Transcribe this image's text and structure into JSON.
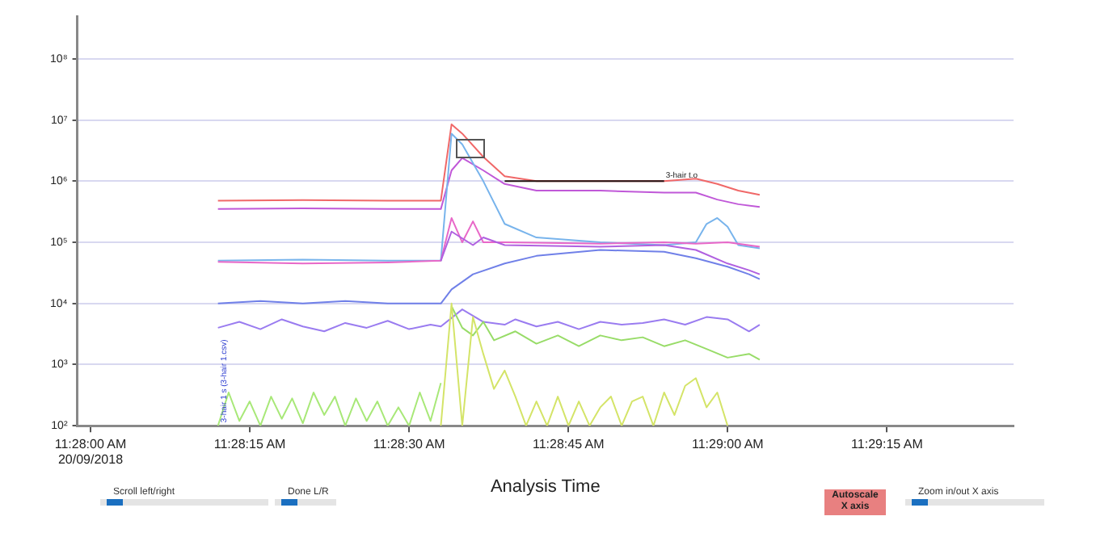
{
  "chart_data": {
    "type": "line",
    "xlabel": "Analysis Time",
    "log": "y",
    "grid": "y",
    "legend": false,
    "marker": "none",
    "line_style": "solid",
    "xlim": [
      11.46632,
      11.49081
    ],
    "ylim": [
      100,
      500000000
    ],
    "xticks": [
      {
        "value": 11.466667,
        "label": "11:28:00 AM\n20/09/2018"
      },
      {
        "value": 11.470833,
        "label": "11:28:15 AM"
      },
      {
        "value": 11.475,
        "label": "11:28:30 AM"
      },
      {
        "value": 11.479167,
        "label": "11:28:45 AM"
      },
      {
        "value": 11.483333,
        "label": "11:29:00 AM"
      },
      {
        "value": 11.4875,
        "label": "11:29:15 AM"
      }
    ],
    "yticks": [
      {
        "value": 100,
        "label": "10²"
      },
      {
        "value": 1000,
        "label": "10³"
      },
      {
        "value": 10000,
        "label": "10⁴"
      },
      {
        "value": 100000,
        "label": "10⁵"
      },
      {
        "value": 1000000,
        "label": "10⁶"
      },
      {
        "value": 10000000,
        "label": "10⁷"
      },
      {
        "value": 100000000,
        "label": "10⁸"
      }
    ],
    "series": [
      {
        "color": "#f06868",
        "x": [
          11.47,
          11.47222,
          11.47444,
          11.47583,
          11.47611,
          11.47639,
          11.47694,
          11.4775,
          11.47833,
          11.48,
          11.48167,
          11.4825,
          11.48306,
          11.48361,
          11.48417
        ],
        "values": [
          480000,
          490000,
          480000,
          480000,
          8500000,
          6000000,
          2500000,
          1200000,
          1000000,
          1000000,
          1000000,
          1100000,
          900000,
          700000,
          600000
        ]
      },
      {
        "color": "#c058d8",
        "x": [
          11.47,
          11.47222,
          11.47444,
          11.47583,
          11.47611,
          11.47639,
          11.47694,
          11.4775,
          11.47833,
          11.48,
          11.48167,
          11.4825,
          11.48306,
          11.48361,
          11.48417
        ],
        "values": [
          350000,
          360000,
          350000,
          350000,
          1500000,
          2400000,
          1500000,
          900000,
          700000,
          700000,
          650000,
          650000,
          500000,
          420000,
          380000
        ]
      },
      {
        "color": "#78b4ec",
        "x": [
          11.47,
          11.47222,
          11.47444,
          11.47583,
          11.47611,
          11.47639,
          11.47694,
          11.4775,
          11.47833,
          11.48,
          11.48167,
          11.4825,
          11.48278,
          11.48306,
          11.48333,
          11.48361,
          11.48417
        ],
        "values": [
          50000,
          52000,
          50000,
          50000,
          6000000,
          4000000,
          1000000,
          200000,
          120000,
          100000,
          90000,
          100000,
          200000,
          250000,
          180000,
          90000,
          80000
        ]
      },
      {
        "color": "#e868c8",
        "x": [
          11.47,
          11.47222,
          11.47444,
          11.47583,
          11.47611,
          11.47639,
          11.47667,
          11.47694,
          11.4775,
          11.48,
          11.48167,
          11.4825,
          11.48333,
          11.48417
        ],
        "values": [
          48000,
          45000,
          47000,
          50000,
          250000,
          100000,
          220000,
          100000,
          100000,
          95000,
          100000,
          95000,
          100000,
          85000
        ]
      },
      {
        "color": "#b060e0",
        "x": [
          11.47583,
          11.47611,
          11.47667,
          11.47694,
          11.4775,
          11.48,
          11.48167,
          11.4825,
          11.48333,
          11.48389,
          11.48417
        ],
        "values": [
          50000,
          150000,
          90000,
          120000,
          90000,
          85000,
          90000,
          75000,
          45000,
          35000,
          30000
        ]
      },
      {
        "color": "#7080e8",
        "x": [
          11.47,
          11.47111,
          11.47222,
          11.47333,
          11.47444,
          11.47583,
          11.47611,
          11.47667,
          11.4775,
          11.47833,
          11.48,
          11.48167,
          11.4825,
          11.48333,
          11.48389,
          11.48417
        ],
        "values": [
          10000,
          11000,
          10000,
          11000,
          10000,
          10000,
          17000,
          30000,
          45000,
          60000,
          75000,
          70000,
          55000,
          40000,
          30000,
          25000
        ]
      },
      {
        "color": "#9a7cf0",
        "x": [
          11.47,
          11.47056,
          11.47111,
          11.47167,
          11.47222,
          11.47278,
          11.47333,
          11.47389,
          11.47444,
          11.475,
          11.47556,
          11.47583,
          11.47639,
          11.47694,
          11.4775,
          11.47778,
          11.47833,
          11.47889,
          11.47944,
          11.48,
          11.48056,
          11.48111,
          11.48167,
          11.48222,
          11.48278,
          11.48333,
          11.48389,
          11.48417
        ],
        "values": [
          4000,
          5000,
          3800,
          5500,
          4200,
          3500,
          4800,
          4000,
          5200,
          3800,
          4500,
          4200,
          8000,
          5000,
          4500,
          5500,
          4200,
          5000,
          3800,
          5000,
          4500,
          4800,
          5500,
          4500,
          6000,
          5500,
          3500,
          4500
        ]
      },
      {
        "color": "#98dc68",
        "x": [
          11.47611,
          11.47639,
          11.47667,
          11.47694,
          11.47722,
          11.47778,
          11.47833,
          11.47889,
          11.47944,
          11.48,
          11.48056,
          11.48111,
          11.48167,
          11.48222,
          11.48278,
          11.48333,
          11.48389,
          11.48417
        ],
        "values": [
          9000,
          4000,
          3000,
          5000,
          2500,
          3500,
          2200,
          3000,
          2000,
          3000,
          2500,
          2800,
          2000,
          2500,
          1800,
          1300,
          1500,
          1200
        ]
      },
      {
        "color": "#a8e878",
        "x": [
          11.47,
          11.47028,
          11.47056,
          11.47083,
          11.47111,
          11.47139,
          11.47167,
          11.47194,
          11.47222,
          11.4725,
          11.47278,
          11.47306,
          11.47333,
          11.47361,
          11.47389,
          11.47417,
          11.47444,
          11.47472,
          11.475,
          11.47528,
          11.47556,
          11.47583
        ],
        "values": [
          100,
          350,
          120,
          250,
          100,
          300,
          130,
          280,
          110,
          350,
          150,
          300,
          100,
          280,
          120,
          250,
          100,
          200,
          100,
          350,
          120,
          500
        ]
      },
      {
        "color": "#d4e468",
        "x": [
          11.47583,
          11.47611,
          11.47639,
          11.47667,
          11.47694,
          11.47722,
          11.4775,
          11.47778,
          11.47806,
          11.47833,
          11.47861,
          11.47889,
          11.47917,
          11.47944,
          11.47972,
          11.48,
          11.48028,
          11.48056,
          11.48083,
          11.48111,
          11.48139,
          11.48167,
          11.48194,
          11.48222,
          11.4825,
          11.48278,
          11.48306,
          11.48333
        ],
        "values": [
          100,
          10000,
          100,
          6000,
          1500,
          400,
          800,
          300,
          100,
          250,
          100,
          300,
          100,
          250,
          100,
          200,
          300,
          100,
          250,
          300,
          100,
          350,
          150,
          450,
          600,
          200,
          350,
          100
        ]
      },
      {
        "color": "#201010",
        "x": [
          11.4775,
          11.48167
        ],
        "values": [
          1000000,
          1000000
        ]
      }
    ],
    "annotations": [
      {
        "text": "3-hair t.o",
        "x": 11.48167,
        "y": 1000000
      },
      {
        "text": "3-hair 1 s (3-hair 1.csv)",
        "x": 11.47,
        "y": 100
      },
      "Scroll left/right",
      "Done L/R",
      "Autoscale X axis",
      "Zoom in/out X axis"
    ]
  }
}
